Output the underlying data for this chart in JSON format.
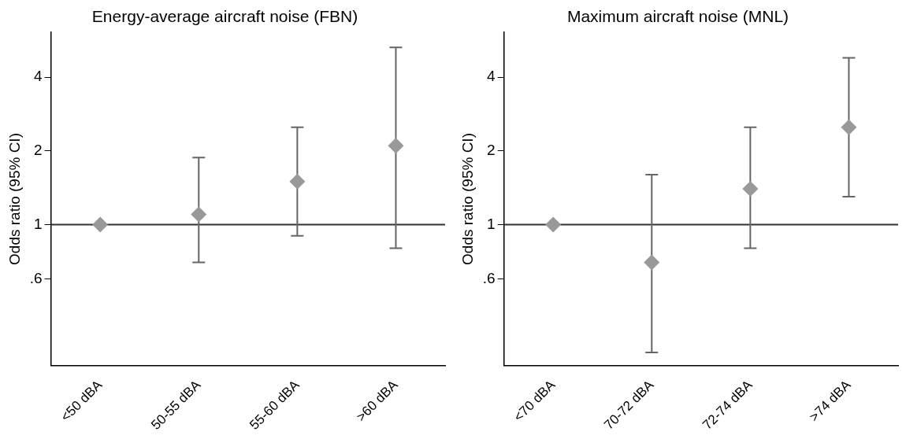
{
  "chart_data": [
    {
      "type": "scatter",
      "title": "Energy-average aircraft noise (FBN)",
      "ylabel": "Odds ratio (95% CI)",
      "categories": [
        "<50 dBA",
        "50-55 dBA",
        "55-60 dBA",
        ">60 dBA"
      ],
      "values": [
        1,
        1.1,
        1.5,
        2.1
      ],
      "errors": [
        null,
        [
          0.7,
          1.88
        ],
        [
          0.9,
          2.5
        ],
        [
          0.8,
          5.3
        ]
      ],
      "color": "#999999",
      "marker": "diamond",
      "log": true,
      "grid": false,
      "legend": false,
      "ylim": [
        0.265,
        6.1
      ],
      "yticks": [
        {
          "value": 0.6,
          "label": ".6"
        },
        1,
        2,
        4
      ],
      "ref_lines": [
        {
          "axis": "y",
          "value": 1,
          "color": "#333333"
        }
      ]
    },
    {
      "type": "scatter",
      "title": "Maximum aircraft noise (MNL)",
      "ylabel": "Odds ratio (95% CI)",
      "categories": [
        "<70 dBA",
        "70-72 dBA",
        "72-74 dBA",
        ">74 dBA"
      ],
      "values": [
        1,
        0.7,
        1.4,
        2.5
      ],
      "errors": [
        null,
        [
          0.3,
          1.6
        ],
        [
          0.8,
          2.5
        ],
        [
          1.3,
          4.8
        ]
      ],
      "color": "#999999",
      "marker": "diamond",
      "log": true,
      "grid": false,
      "legend": false,
      "ylim": [
        0.265,
        6.1
      ],
      "yticks": [
        {
          "value": 0.6,
          "label": ".6"
        },
        1,
        2,
        4
      ],
      "ref_lines": [
        {
          "axis": "y",
          "value": 1,
          "color": "#333333"
        }
      ]
    }
  ]
}
